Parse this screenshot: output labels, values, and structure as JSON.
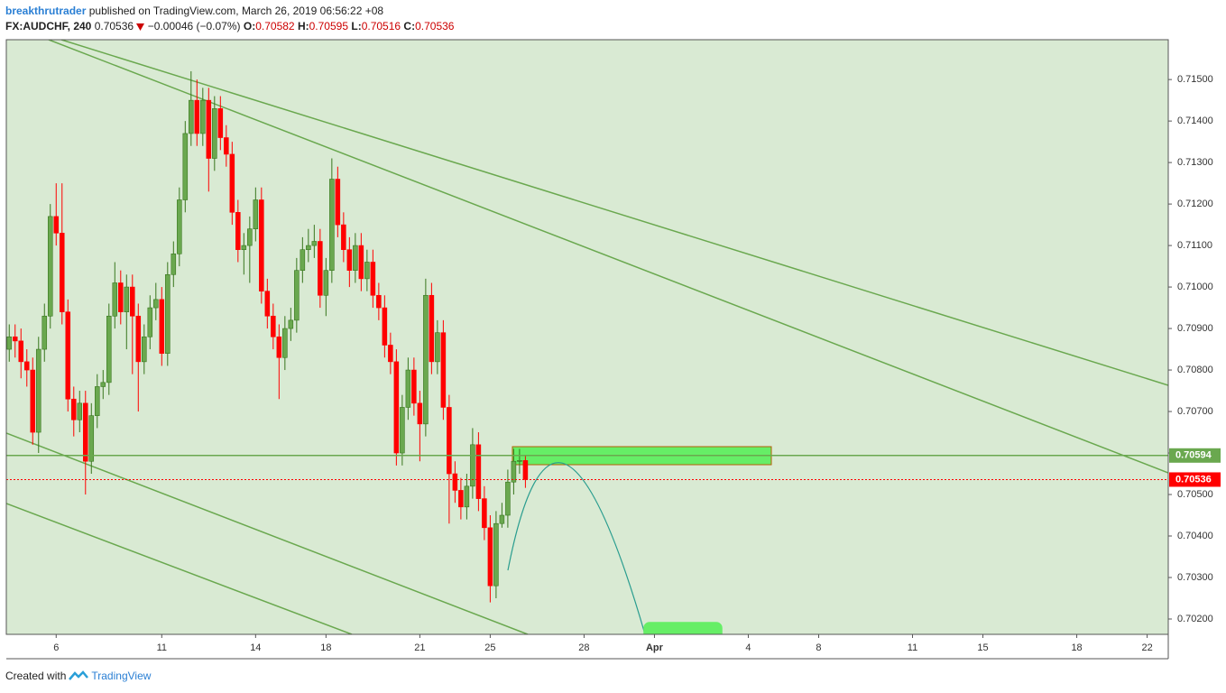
{
  "header": {
    "author": "breakthrutrader",
    "published": "published on TradingView.com, March 26, 2019 06:56:22 +08",
    "symbol": "FX:AUDCHF, 240",
    "last": 0.70536,
    "change": "−0.00046 (−0.07%)",
    "o_label": "O:",
    "open": 0.70582,
    "h_label": "H:",
    "high": 0.70595,
    "l_label": "L:",
    "low": 0.70516,
    "c_label": "C:",
    "close": 0.70536
  },
  "footer": {
    "created": "Created with",
    "brand": "TradingView"
  },
  "chart_data": {
    "type": "candlestick",
    "up_color": "#6aa84f",
    "down_color": "#ff0000",
    "open": [
      0.7085,
      0.7088,
      0.7087,
      0.7082,
      0.708,
      0.7065,
      0.7085,
      0.7093,
      0.7117,
      0.7113,
      0.7094,
      0.7073,
      0.7068,
      0.7072,
      0.7058,
      0.7069,
      0.7076,
      0.7077,
      0.7093,
      0.7101,
      0.7094,
      0.71,
      0.7093,
      0.7082,
      0.7088,
      0.7095,
      0.7097,
      0.7084,
      0.7103,
      0.7108,
      0.7121,
      0.7137,
      0.7145,
      0.7137,
      0.7145,
      0.7131,
      0.7143,
      0.7136,
      0.7132,
      0.7118,
      0.7109,
      0.711,
      0.7114,
      0.7121,
      0.7099,
      0.7093,
      0.7088,
      0.7083,
      0.709,
      0.7092,
      0.7104,
      0.7109,
      0.711,
      0.7111,
      0.7098,
      0.7104,
      0.7126,
      0.7115,
      0.7109,
      0.7104,
      0.711,
      0.7102,
      0.7106,
      0.7098,
      0.7095,
      0.7086,
      0.7082,
      0.706,
      0.7071,
      0.708,
      0.7072,
      0.7067,
      0.7098,
      0.7082,
      0.7089,
      0.7071,
      0.7055,
      0.7051,
      0.7047,
      0.7052,
      0.7062,
      0.7049,
      0.7042,
      0.7028,
      0.7043,
      0.7045,
      0.7053,
      0.7058,
      0.70582
    ],
    "high": [
      0.7091,
      0.7091,
      0.709,
      0.7085,
      0.7083,
      0.7088,
      0.7096,
      0.712,
      0.7125,
      0.7125,
      0.7097,
      0.7076,
      0.7075,
      0.7075,
      0.7072,
      0.7079,
      0.708,
      0.7096,
      0.7106,
      0.7104,
      0.7103,
      0.7103,
      0.7096,
      0.7091,
      0.7098,
      0.7101,
      0.71,
      0.7106,
      0.7111,
      0.7124,
      0.714,
      0.7152,
      0.715,
      0.7148,
      0.7148,
      0.7146,
      0.7146,
      0.7139,
      0.7135,
      0.7121,
      0.7113,
      0.7117,
      0.7124,
      0.7124,
      0.7102,
      0.7096,
      0.7091,
      0.7093,
      0.7095,
      0.7107,
      0.7112,
      0.7114,
      0.7115,
      0.7114,
      0.7107,
      0.7131,
      0.7129,
      0.7118,
      0.7112,
      0.7113,
      0.7113,
      0.7109,
      0.7109,
      0.7101,
      0.7098,
      0.7089,
      0.7085,
      0.7074,
      0.7083,
      0.7083,
      0.7075,
      0.7102,
      0.7101,
      0.7092,
      0.7092,
      0.7074,
      0.7058,
      0.7054,
      0.7055,
      0.7066,
      0.7065,
      0.7052,
      0.7045,
      0.7046,
      0.7048,
      0.7056,
      0.7061,
      0.7061,
      0.70595
    ],
    "low": [
      0.7082,
      0.7083,
      0.7078,
      0.7076,
      0.7062,
      0.706,
      0.7082,
      0.709,
      0.711,
      0.7091,
      0.707,
      0.7064,
      0.7065,
      0.705,
      0.7055,
      0.7066,
      0.7073,
      0.7074,
      0.709,
      0.7091,
      0.7085,
      0.7079,
      0.707,
      0.7079,
      0.7085,
      0.7092,
      0.7081,
      0.7081,
      0.71,
      0.7105,
      0.7118,
      0.7134,
      0.7134,
      0.7134,
      0.7123,
      0.7128,
      0.7133,
      0.7129,
      0.7115,
      0.7106,
      0.7103,
      0.7101,
      0.7111,
      0.7096,
      0.709,
      0.7085,
      0.7073,
      0.708,
      0.7087,
      0.7089,
      0.7101,
      0.7106,
      0.7107,
      0.7095,
      0.7093,
      0.7101,
      0.7112,
      0.7106,
      0.71,
      0.7101,
      0.7099,
      0.7099,
      0.7095,
      0.7092,
      0.7083,
      0.7079,
      0.7057,
      0.7057,
      0.7068,
      0.7069,
      0.7058,
      0.7064,
      0.7079,
      0.7079,
      0.7068,
      0.7043,
      0.7048,
      0.7044,
      0.7044,
      0.7049,
      0.7046,
      0.7039,
      0.7024,
      0.7025,
      0.7042,
      0.7042,
      0.705,
      0.7055,
      0.70516
    ],
    "close": [
      0.7088,
      0.7087,
      0.7082,
      0.708,
      0.7065,
      0.7085,
      0.7093,
      0.7117,
      0.7113,
      0.7094,
      0.7073,
      0.7068,
      0.7072,
      0.7058,
      0.7069,
      0.7076,
      0.7077,
      0.7093,
      0.7101,
      0.7094,
      0.71,
      0.7093,
      0.7082,
      0.7088,
      0.7095,
      0.7097,
      0.7084,
      0.7103,
      0.7108,
      0.7121,
      0.7137,
      0.7145,
      0.7137,
      0.7145,
      0.7131,
      0.7143,
      0.7136,
      0.7132,
      0.7118,
      0.7109,
      0.711,
      0.7114,
      0.7121,
      0.7099,
      0.7093,
      0.7088,
      0.7083,
      0.709,
      0.7092,
      0.7104,
      0.7109,
      0.711,
      0.7111,
      0.7098,
      0.7104,
      0.7126,
      0.7115,
      0.7109,
      0.7104,
      0.711,
      0.7102,
      0.7106,
      0.7098,
      0.7095,
      0.7086,
      0.7082,
      0.706,
      0.7071,
      0.708,
      0.7072,
      0.7067,
      0.7098,
      0.7082,
      0.7089,
      0.7071,
      0.7055,
      0.7051,
      0.7047,
      0.7052,
      0.7062,
      0.7049,
      0.7042,
      0.7028,
      0.7043,
      0.7045,
      0.7053,
      0.7058,
      0.70582,
      0.70536
    ],
    "xlim": [
      -0.5,
      197.6
    ],
    "xticks": [
      {
        "value": 8,
        "label": "6"
      },
      {
        "value": 26,
        "label": "11"
      },
      {
        "value": 42,
        "label": "14"
      },
      {
        "value": 54,
        "label": "18"
      },
      {
        "value": 70,
        "label": "21"
      },
      {
        "value": 82,
        "label": "25"
      },
      {
        "value": 98,
        "label": "28"
      },
      {
        "value": 110,
        "label": "Apr"
      },
      {
        "value": 126,
        "label": "4"
      },
      {
        "value": 138,
        "label": "8"
      },
      {
        "value": 154,
        "label": "11"
      },
      {
        "value": 166,
        "label": "15"
      },
      {
        "value": 182,
        "label": "18"
      },
      {
        "value": 194,
        "label": "22"
      }
    ],
    "ylim": [
      0.70163,
      0.71596
    ],
    "yticks": [
      {
        "value": 0.702,
        "label": "0.70200"
      },
      {
        "value": 0.703,
        "label": "0.70300"
      },
      {
        "value": 0.704,
        "label": "0.70400"
      },
      {
        "value": 0.705,
        "label": "0.70500"
      },
      {
        "value": 0.706,
        "label": "0.70600"
      },
      {
        "value": 0.707,
        "label": "0.70700"
      },
      {
        "value": 0.708,
        "label": "0.70800"
      },
      {
        "value": 0.709,
        "label": "0.70900"
      },
      {
        "value": 0.71,
        "label": "0.71000"
      },
      {
        "value": 0.711,
        "label": "0.71100"
      },
      {
        "value": 0.712,
        "label": "0.71200"
      },
      {
        "value": 0.713,
        "label": "0.71300"
      },
      {
        "value": 0.714,
        "label": "0.71400"
      },
      {
        "value": 0.715,
        "label": "0.71500"
      }
    ],
    "level_line": 0.70594,
    "level_color": "#6aa84f",
    "last_price": 0.70536,
    "last_color": "#ff0000"
  }
}
